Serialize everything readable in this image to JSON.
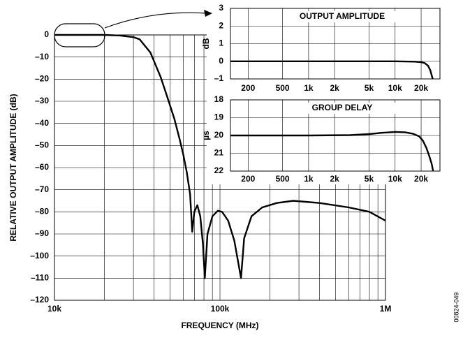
{
  "chart_data": [
    {
      "type": "line",
      "xscale": "log",
      "xlabel": "FREQUENCY (MHz)",
      "ylabel": "RELATIVE OUTPUT AMPLITUDE (dB)",
      "note": "00824-049",
      "color": "#000000",
      "grid": true,
      "xlim": [
        10000,
        1000000
      ],
      "ylim": [
        -120,
        0
      ],
      "xticks": [
        {
          "value": 10000,
          "label": "10k"
        },
        {
          "value": 100000,
          "label": "100k"
        },
        {
          "value": 1000000,
          "label": "1M"
        }
      ],
      "x_grid": [
        20000,
        30000,
        40000,
        50000,
        60000,
        70000,
        80000,
        90000,
        200000,
        300000,
        400000,
        500000,
        600000,
        700000,
        800000,
        900000
      ],
      "yticks": [
        0,
        {
          "value": -10,
          "label": "–10"
        },
        {
          "value": -20,
          "label": "–20"
        },
        {
          "value": -30,
          "label": "–30"
        },
        {
          "value": -40,
          "label": "–40"
        },
        {
          "value": -50,
          "label": "–50"
        },
        {
          "value": -60,
          "label": "–60"
        },
        {
          "value": -70,
          "label": "–70"
        },
        {
          "value": -80,
          "label": "–80"
        },
        {
          "value": -90,
          "label": "–90"
        },
        {
          "value": -100,
          "label": "–100"
        },
        {
          "value": -110,
          "label": "–110"
        },
        {
          "value": -120,
          "label": "–120"
        }
      ],
      "x": [
        10000,
        20000,
        25000,
        30000,
        32700,
        38000,
        43800,
        48000,
        53000,
        57000,
        60000,
        63000,
        66000,
        68000,
        70000,
        73000,
        76000,
        79000,
        81000,
        84000,
        90000,
        97000,
        103000,
        112000,
        122000,
        129000,
        134000,
        140000,
        155000,
        180000,
        220000,
        277000,
        400000,
        600000,
        800000,
        1000000
      ],
      "values": [
        0,
        0,
        -0.3,
        -1,
        -2,
        -8,
        -19,
        -28,
        -38,
        -47,
        -54,
        -62,
        -72,
        -89,
        -80,
        -77,
        -82,
        -95,
        -110,
        -90,
        -82,
        -79.5,
        -80,
        -84,
        -93,
        -103,
        -110,
        -92,
        -82,
        -78,
        -76,
        -75,
        -76,
        -78,
        -80,
        -84
      ]
    },
    {
      "type": "line",
      "xscale": "log",
      "title": "OUTPUT AMPLITUDE",
      "ylabel": "dB",
      "color": "#000000",
      "grid": true,
      "xlim": [
        125,
        33000
      ],
      "ylim": [
        -1,
        3
      ],
      "xticks": [
        200,
        500,
        {
          "value": 1000,
          "label": "1k"
        },
        {
          "value": 2000,
          "label": "2k"
        },
        {
          "value": 5000,
          "label": "5k"
        },
        {
          "value": 10000,
          "label": "10k"
        },
        {
          "value": 20000,
          "label": "20k"
        }
      ],
      "yticks": [
        3,
        2,
        1,
        0,
        {
          "value": -1,
          "label": "–1"
        }
      ],
      "x": [
        125,
        1000,
        10000,
        17000,
        20000,
        22000,
        24000,
        25500,
        26500,
        27200
      ],
      "values": [
        0,
        0,
        0,
        -0.02,
        -0.05,
        -0.1,
        -0.25,
        -0.5,
        -0.8,
        -1
      ]
    },
    {
      "type": "line",
      "xscale": "log",
      "title": "GROUP DELAY",
      "ylabel": "µs",
      "color": "#000000",
      "grid": true,
      "y_inverted": true,
      "xlim": [
        125,
        33000
      ],
      "ylim": [
        18,
        22
      ],
      "xticks": [
        200,
        500,
        {
          "value": 1000,
          "label": "1k"
        },
        {
          "value": 2000,
          "label": "2k"
        },
        {
          "value": 5000,
          "label": "5k"
        },
        {
          "value": 10000,
          "label": "10k"
        },
        {
          "value": 20000,
          "label": "20k"
        }
      ],
      "yticks": [
        18,
        19,
        20,
        21,
        22
      ],
      "x": [
        125,
        1000,
        3000,
        5000,
        7000,
        10000,
        13000,
        16000,
        19000,
        21000,
        23000,
        25000,
        26500,
        27500
      ],
      "values": [
        20,
        20,
        19.98,
        19.92,
        19.85,
        19.8,
        19.82,
        19.9,
        20.05,
        20.3,
        20.7,
        21.2,
        21.6,
        22
      ]
    }
  ]
}
